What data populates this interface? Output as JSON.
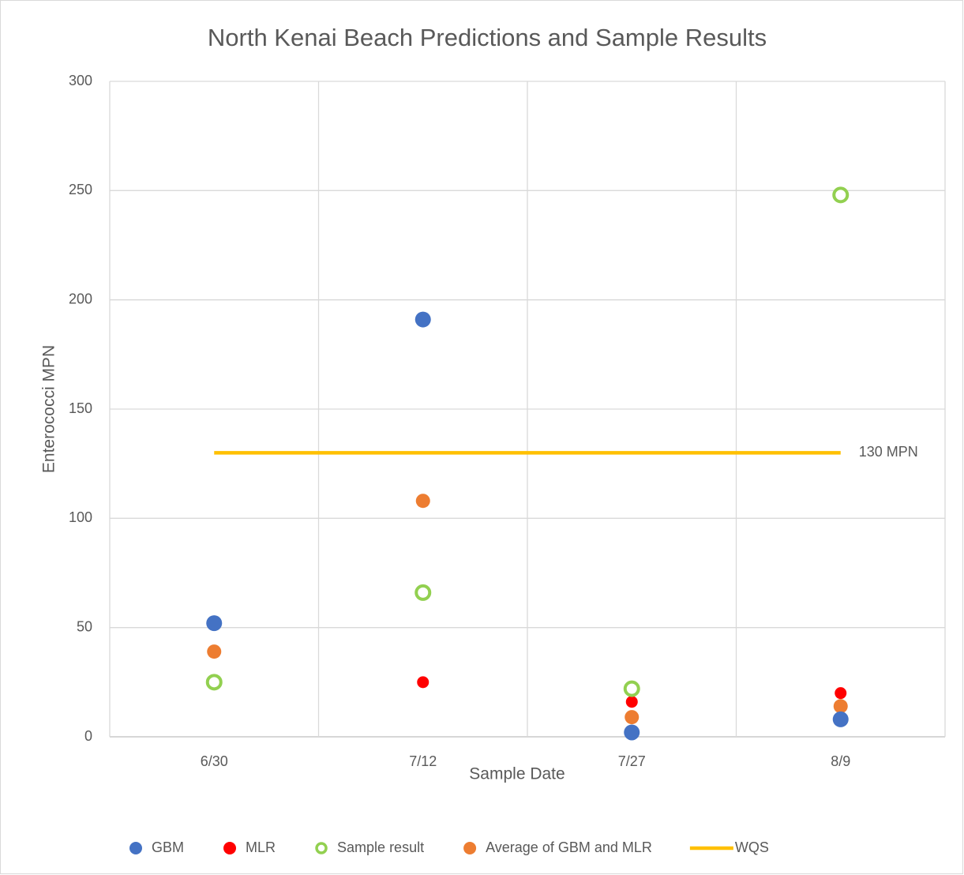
{
  "chart_data": {
    "type": "scatter",
    "title": "North Kenai Beach Predictions and Sample Results",
    "x_label": "Sample Date",
    "y_label": "Enterococci MPN",
    "categories": [
      "6/30",
      "7/12",
      "7/27",
      "8/9"
    ],
    "ylim": [
      0,
      300
    ],
    "yticks": [
      0,
      50,
      100,
      150,
      200,
      250,
      300
    ],
    "grid": true,
    "legend": "bottom",
    "series": [
      {
        "name": "GBM",
        "color": "#4472c4",
        "marker": "dot",
        "values": [
          52,
          191,
          2,
          8
        ]
      },
      {
        "name": "MLR",
        "color": "#ff0000",
        "marker": "dot",
        "values": [
          25,
          25,
          16,
          20
        ]
      },
      {
        "name": "Sample result",
        "color": "#92d050",
        "marker": "ring",
        "values": [
          25,
          66,
          22,
          248
        ]
      },
      {
        "name": "Average of GBM and MLR",
        "color": "#ed7d31",
        "marker": "dot",
        "values": [
          39,
          108,
          9,
          14
        ]
      },
      {
        "name": "WQS",
        "color": "#ffc000",
        "marker": "line",
        "values": [
          130,
          130,
          130,
          130
        ]
      }
    ],
    "annotations": [
      "130 MPN"
    ]
  }
}
